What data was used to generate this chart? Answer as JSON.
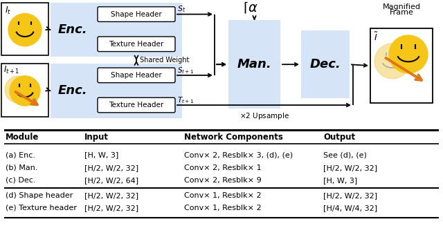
{
  "light_blue": "#d6e4f7",
  "table_headers": [
    "Module",
    "Input",
    "Network Components",
    "Output"
  ],
  "table_rows": [
    [
      "(a) Enc.",
      "[H, W, 3]",
      "Conv× 2, Resblk× 3, (d), (e)",
      "See (d), (e)"
    ],
    [
      "(b) Man.",
      "[H/2, W/2, 32]",
      "Conv× 2, Resblk× 1",
      "[H/2, W/2, 32]"
    ],
    [
      "(c) Dec.",
      "[H/2, W/2, 64]",
      "Conv× 2, Resblk× 9",
      "[H, W, 3]"
    ],
    [
      "(d) Shape header",
      "[H/2, W/2, 32]",
      "Conv× 1, Resblk× 2",
      "[H/2, W/2, 32]"
    ],
    [
      "(e) Texture header",
      "[H/2, W/2, 32]",
      "Conv× 1, Resblk× 2",
      "[H/4, W/4, 32]"
    ]
  ]
}
